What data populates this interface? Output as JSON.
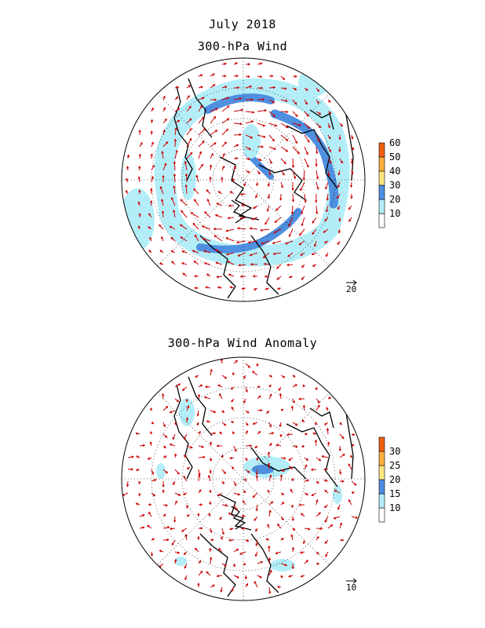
{
  "titles": {
    "date": "July 2018",
    "top_panel": "300-hPa Wind",
    "bottom_panel": "300-hPa Wind Anomaly"
  },
  "top_panel": {
    "colorbar": {
      "levels": [
        "10",
        "20",
        "30",
        "40",
        "50",
        "60"
      ],
      "colors": [
        "#ffffff",
        "#b3eef8",
        "#4f8fe0",
        "#ffe680",
        "#ffb040",
        "#f06010"
      ]
    },
    "reference_vector": "20"
  },
  "bottom_panel": {
    "colorbar": {
      "levels": [
        "10",
        "15",
        "20",
        "25",
        "30"
      ],
      "colors": [
        "#ffffff",
        "#b3eef8",
        "#4f8fe0",
        "#ffe680",
        "#ffb040",
        "#f06010"
      ]
    },
    "reference_vector": "10"
  },
  "style": {
    "arrow_color": "#cc0000",
    "coast_color": "#000000",
    "grid_color": "#000000"
  }
}
